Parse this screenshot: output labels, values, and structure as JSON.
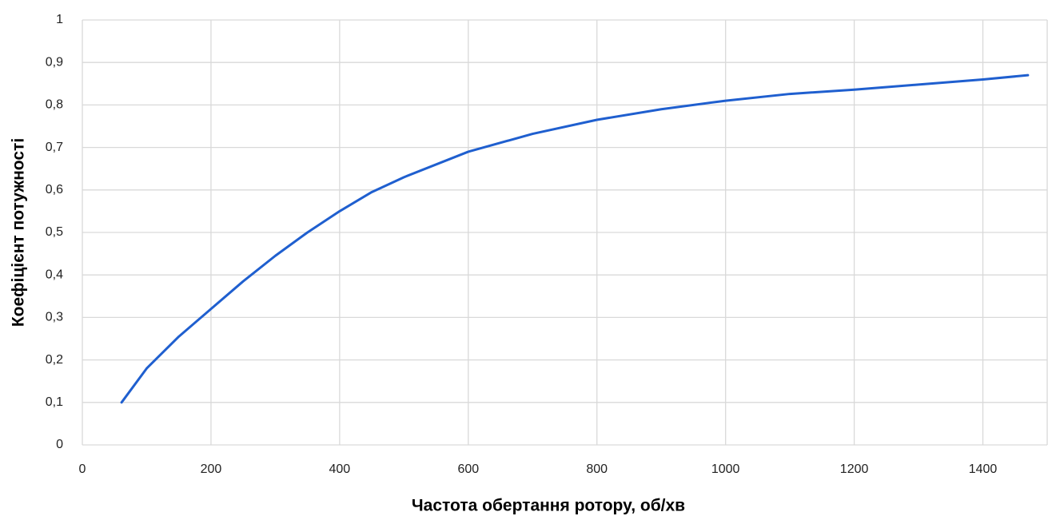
{
  "chart_data": {
    "type": "line",
    "xlabel": "Частота обертання ротору, об/хв",
    "ylabel": "Коефіцієнт потужності",
    "x": [
      61,
      100,
      150,
      200,
      250,
      300,
      350,
      400,
      450,
      500,
      600,
      700,
      800,
      900,
      1000,
      1100,
      1200,
      1300,
      1400,
      1470
    ],
    "series": [
      {
        "name": "Коефіцієнт потужності",
        "color": "#1f5fcf",
        "values": [
          0.1,
          0.18,
          0.255,
          0.32,
          0.385,
          0.445,
          0.5,
          0.55,
          0.595,
          0.63,
          0.69,
          0.732,
          0.765,
          0.79,
          0.81,
          0.826,
          0.836,
          0.848,
          0.86,
          0.87
        ]
      }
    ],
    "xlim": [
      0,
      1500
    ],
    "xticks": [
      0,
      200,
      400,
      600,
      800,
      1000,
      1200,
      1400
    ],
    "ylim": [
      0,
      1
    ],
    "yticks": [
      0,
      {
        "value": 0.1,
        "label": "0,1"
      },
      {
        "value": 0.2,
        "label": "0,2"
      },
      {
        "value": 0.3,
        "label": "0,3"
      },
      {
        "value": 0.4,
        "label": "0,4"
      },
      {
        "value": 0.5,
        "label": "0,5"
      },
      {
        "value": 0.6,
        "label": "0,6"
      },
      {
        "value": 0.7,
        "label": "0,7"
      },
      {
        "value": 0.8,
        "label": "0,8"
      },
      {
        "value": 0.9,
        "label": "0,9"
      },
      1
    ],
    "grid": true
  }
}
